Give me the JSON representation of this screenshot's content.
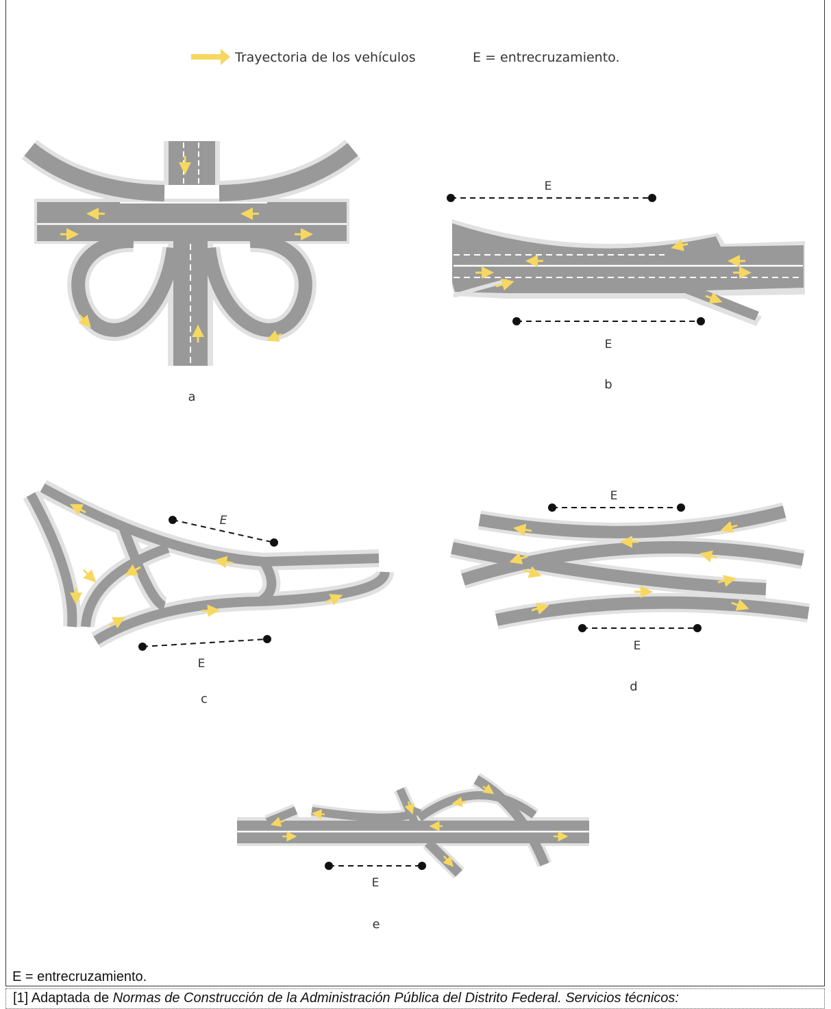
{
  "legend": {
    "arrow_label": "Trayectoria de los vehículos",
    "e_definition": "E = entrecruzamiento."
  },
  "panels": {
    "a": {
      "label": "a"
    },
    "b": {
      "label": "b",
      "weave_top": "E",
      "weave_bottom": "E"
    },
    "c": {
      "label": "c",
      "weave_top": "E",
      "weave_bottom": "E"
    },
    "d": {
      "label": "d",
      "weave_top": "E",
      "weave_bottom": "E"
    },
    "e": {
      "label": "e",
      "weave": "E"
    }
  },
  "caption": "E = entrecruzamiento.",
  "source": {
    "prefix": "[1] Adaptada de ",
    "title": "Normas de Construcción de la Administración Pública del Distrito Federal. Servicios técnicos:"
  },
  "colors": {
    "road": "#999999",
    "shoulder": "#e1e1e1",
    "arrow": "#f6d860",
    "marking": "#ffffff",
    "weave_marker": "#111111"
  }
}
